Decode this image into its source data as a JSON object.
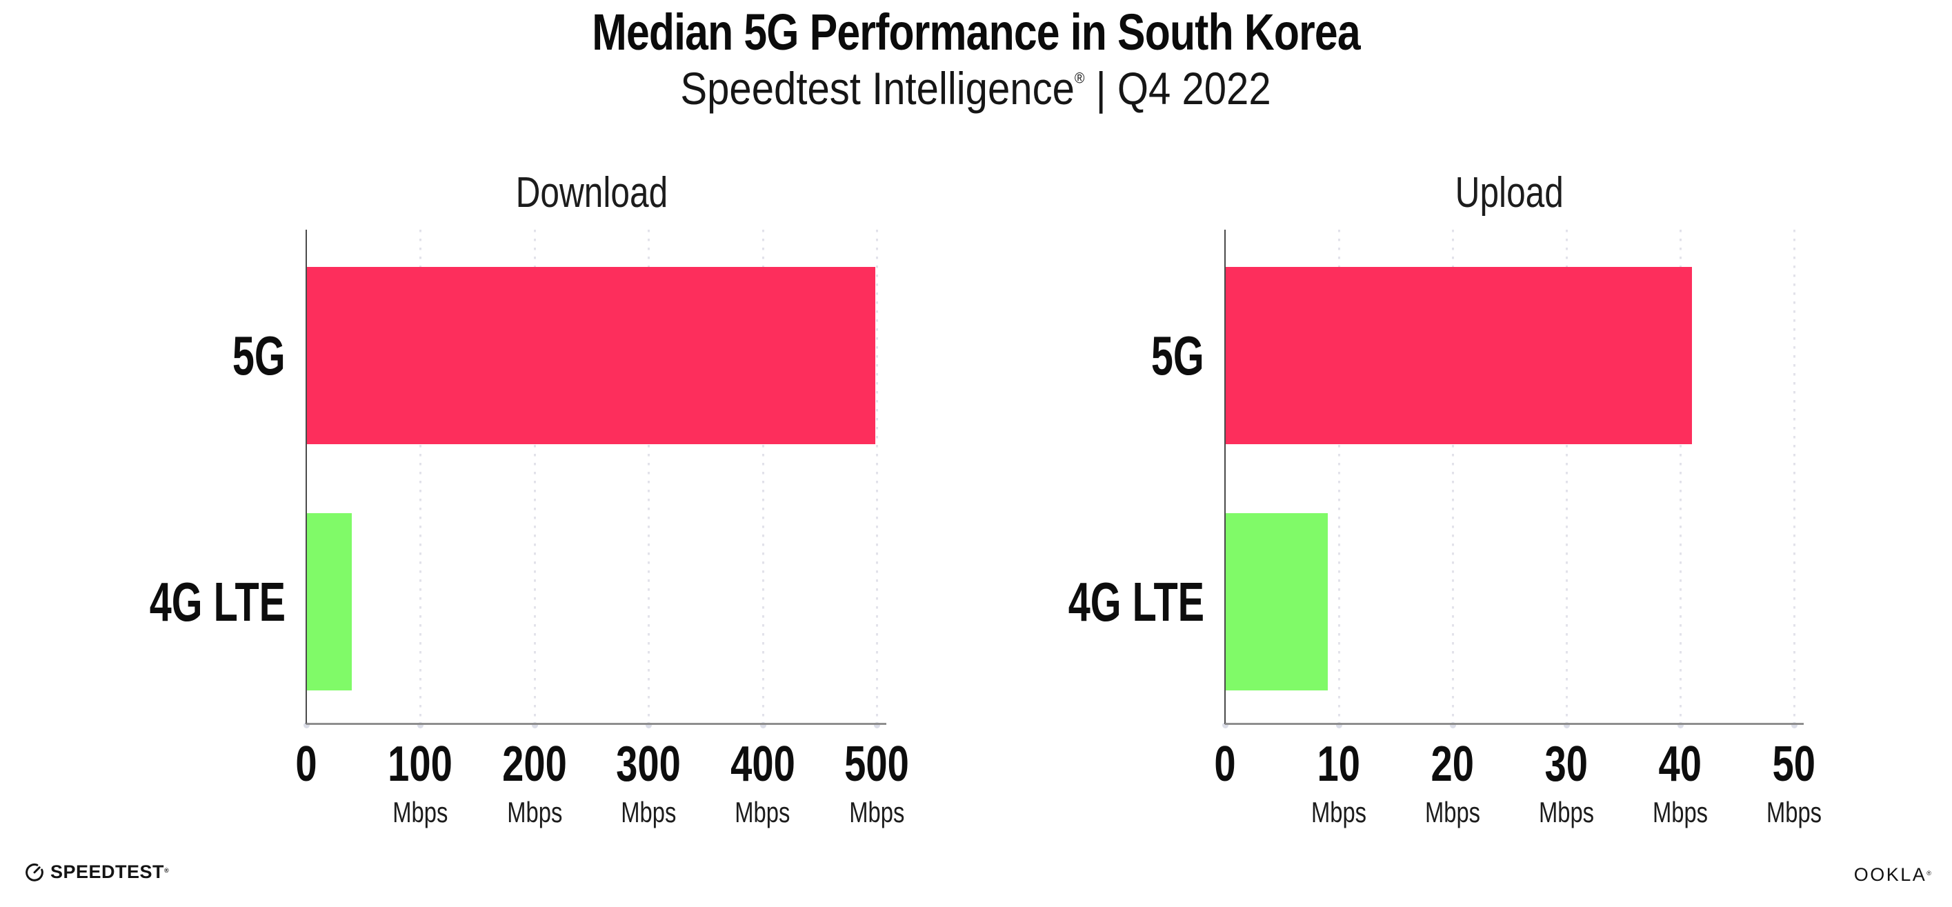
{
  "header": {
    "title": "Median 5G Performance in South Korea",
    "subtitle_brand": "Speedtest Intelligence",
    "subtitle_mark": "®",
    "subtitle_rest": " | Q4 2022"
  },
  "footer": {
    "speedtest_wordmark": "SPEEDTEST",
    "speedtest_mark": "®",
    "ookla_wordmark": "OOKLA",
    "ookla_mark": "®"
  },
  "colors": {
    "bar_5g": "#fd2e5c",
    "bar_4g_lte": "#80fa68",
    "gridline_dot": "#e2e2ea",
    "axis_tick_dot": "#dcdee8",
    "x_axis_line": "#8e8e8e",
    "y_axis_line": "#4a4a4a",
    "text": "#111111"
  },
  "chart_data": [
    {
      "type": "bar",
      "orientation": "horizontal",
      "title": "Download",
      "categories": [
        "5G",
        "4G LTE"
      ],
      "values": [
        499,
        40
      ],
      "unit": "Mbps",
      "xlabel": "",
      "ylabel": "",
      "xlim": [
        0,
        500
      ],
      "xticks": [
        0,
        100,
        200,
        300,
        400,
        500
      ],
      "bar_colors": [
        "#fd2e5c",
        "#80fa68"
      ],
      "grid": "vertical-dotted",
      "legend": "none"
    },
    {
      "type": "bar",
      "orientation": "horizontal",
      "title": "Upload",
      "categories": [
        "5G",
        "4G LTE"
      ],
      "values": [
        41,
        9
      ],
      "unit": "Mbps",
      "xlabel": "",
      "ylabel": "",
      "xlim": [
        0,
        50
      ],
      "xticks": [
        0,
        10,
        20,
        30,
        40,
        50
      ],
      "bar_colors": [
        "#fd2e5c",
        "#80fa68"
      ],
      "grid": "vertical-dotted",
      "legend": "none"
    }
  ]
}
